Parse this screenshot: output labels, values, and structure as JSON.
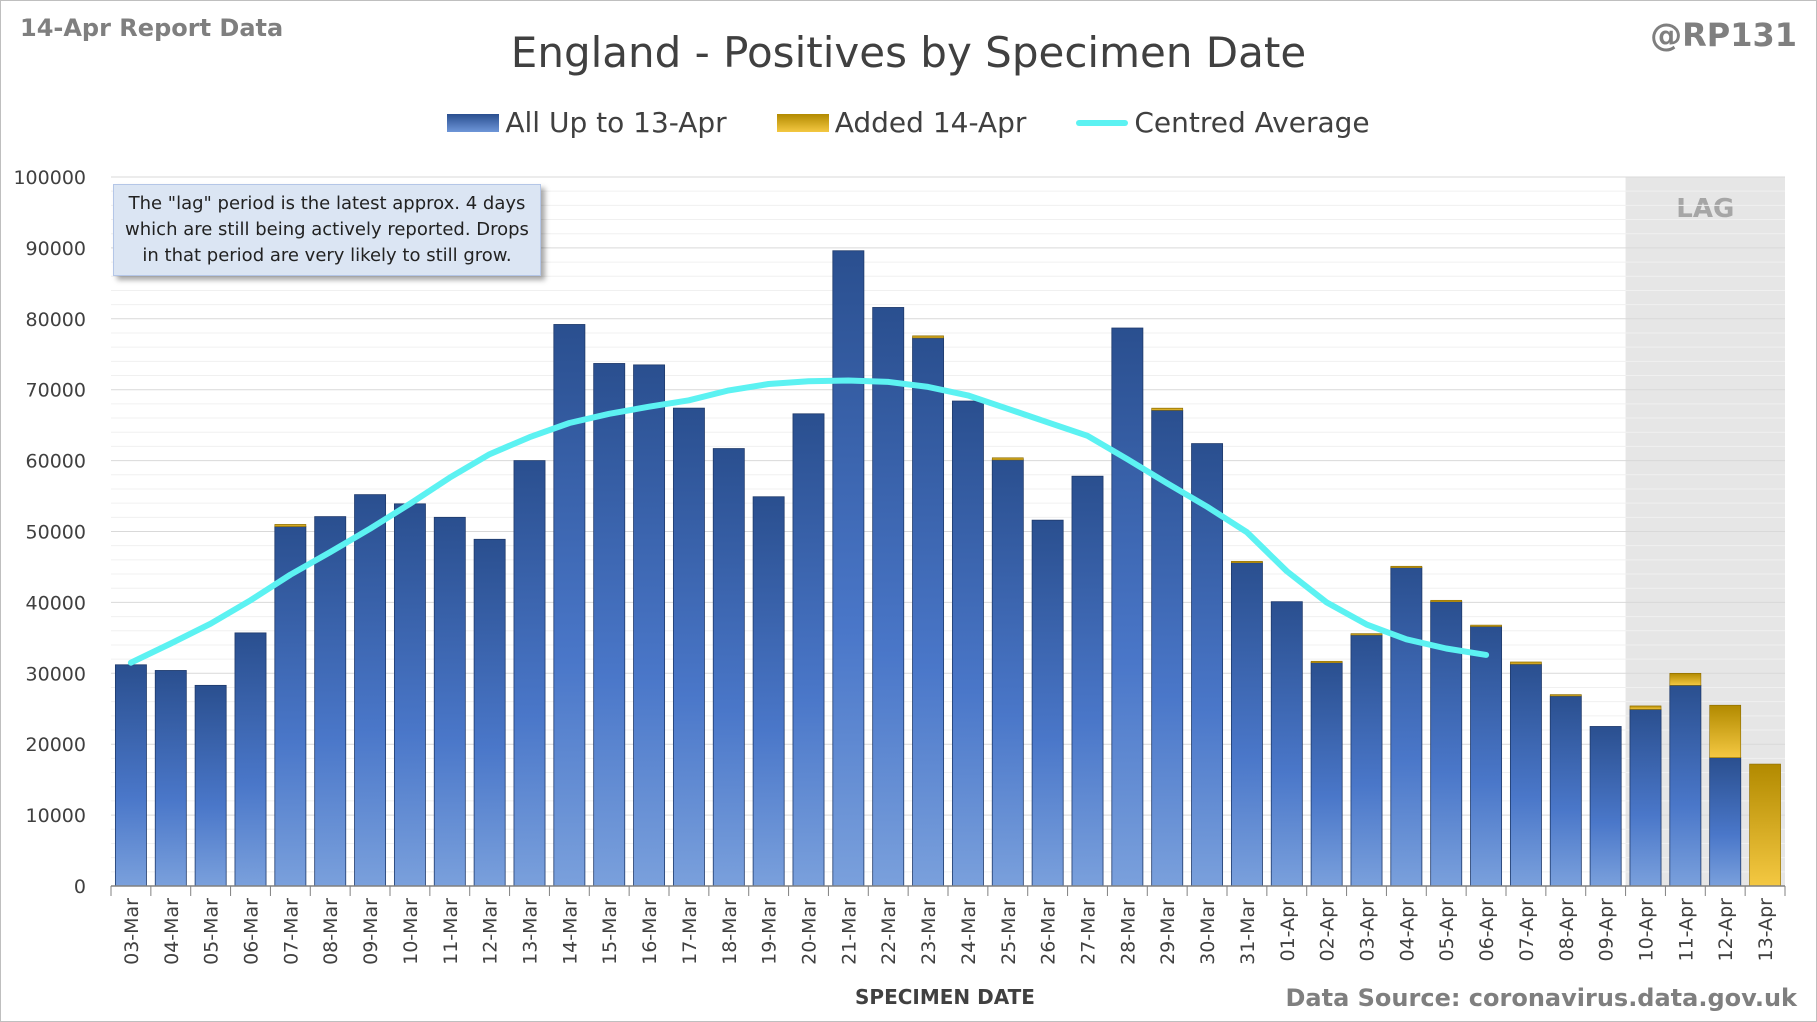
{
  "header": {
    "report_label": "14-Apr Report Data",
    "handle": "@RP131",
    "title": "England - Positives by Specimen Date"
  },
  "legend": {
    "series1": "All Up to 13-Apr",
    "series2": "Added 14-Apr",
    "series3": "Centred Average"
  },
  "annotation": {
    "note": "The \"lag\" period is the latest approx. 4 days which are still being actively reported.  Drops in that period are very likely to still grow.",
    "lag_label": "LAG"
  },
  "footer": {
    "source": "Data Source: coronavirus.data.gov.uk"
  },
  "colors": {
    "bar_dark": "#2a4f8f",
    "bar_light": "#7aa0dc",
    "added_dark": "#b28a00",
    "added_light": "#f4c842",
    "average_line": "#5cf2f2",
    "lag_shade": "#e6e6e6"
  },
  "chart_data": {
    "type": "bar",
    "stacked": true,
    "title": "England - Positives by Specimen Date",
    "xlabel": "SPECIMEN DATE",
    "ylabel": "",
    "ylim": [
      0,
      100000
    ],
    "yticks": [
      0,
      10000,
      20000,
      30000,
      40000,
      50000,
      60000,
      70000,
      80000,
      90000,
      100000
    ],
    "grid": true,
    "legend_position": "top",
    "lag_categories": [
      "10-Apr",
      "11-Apr",
      "12-Apr",
      "13-Apr"
    ],
    "categories": [
      "03-Mar",
      "04-Mar",
      "05-Mar",
      "06-Mar",
      "07-Mar",
      "08-Mar",
      "09-Mar",
      "10-Mar",
      "11-Mar",
      "12-Mar",
      "13-Mar",
      "14-Mar",
      "15-Mar",
      "16-Mar",
      "17-Mar",
      "18-Mar",
      "19-Mar",
      "20-Mar",
      "21-Mar",
      "22-Mar",
      "23-Mar",
      "24-Mar",
      "25-Mar",
      "26-Mar",
      "27-Mar",
      "28-Mar",
      "29-Mar",
      "30-Mar",
      "31-Mar",
      "01-Apr",
      "02-Apr",
      "03-Apr",
      "04-Apr",
      "05-Apr",
      "06-Apr",
      "07-Apr",
      "08-Apr",
      "09-Apr",
      "10-Apr",
      "11-Apr",
      "12-Apr",
      "13-Apr"
    ],
    "series": [
      {
        "name": "All Up to 13-Apr",
        "values": [
          31200,
          30400,
          28300,
          35700,
          50700,
          52100,
          55200,
          53900,
          52000,
          48900,
          60000,
          79200,
          73700,
          73500,
          67400,
          61700,
          54900,
          66600,
          89600,
          81600,
          77300,
          68400,
          60100,
          51600,
          57800,
          78700,
          67100,
          62400,
          45600,
          40100,
          31500,
          35400,
          44900,
          40100,
          36600,
          31300,
          26800,
          22500,
          24900,
          28300,
          18100,
          0
        ]
      },
      {
        "name": "Added 14-Apr",
        "values": [
          0,
          0,
          0,
          0,
          300,
          0,
          0,
          0,
          0,
          0,
          0,
          0,
          0,
          0,
          0,
          0,
          0,
          0,
          0,
          0,
          300,
          0,
          300,
          0,
          0,
          0,
          300,
          0,
          200,
          0,
          200,
          200,
          200,
          200,
          200,
          300,
          200,
          0,
          500,
          1700,
          7400,
          17200
        ]
      },
      {
        "name": "Centred Average",
        "type": "line",
        "values": [
          31500,
          34200,
          37000,
          40300,
          43900,
          47100,
          50400,
          53900,
          57600,
          60900,
          63300,
          65300,
          66600,
          67600,
          68500,
          69900,
          70800,
          71200,
          71300,
          71100,
          70400,
          69200,
          67300,
          65400,
          63500,
          60200,
          56800,
          53500,
          49900,
          44400,
          40000,
          36900,
          34800,
          33500,
          32600,
          null,
          null,
          null,
          null,
          null,
          null,
          null
        ]
      }
    ]
  }
}
